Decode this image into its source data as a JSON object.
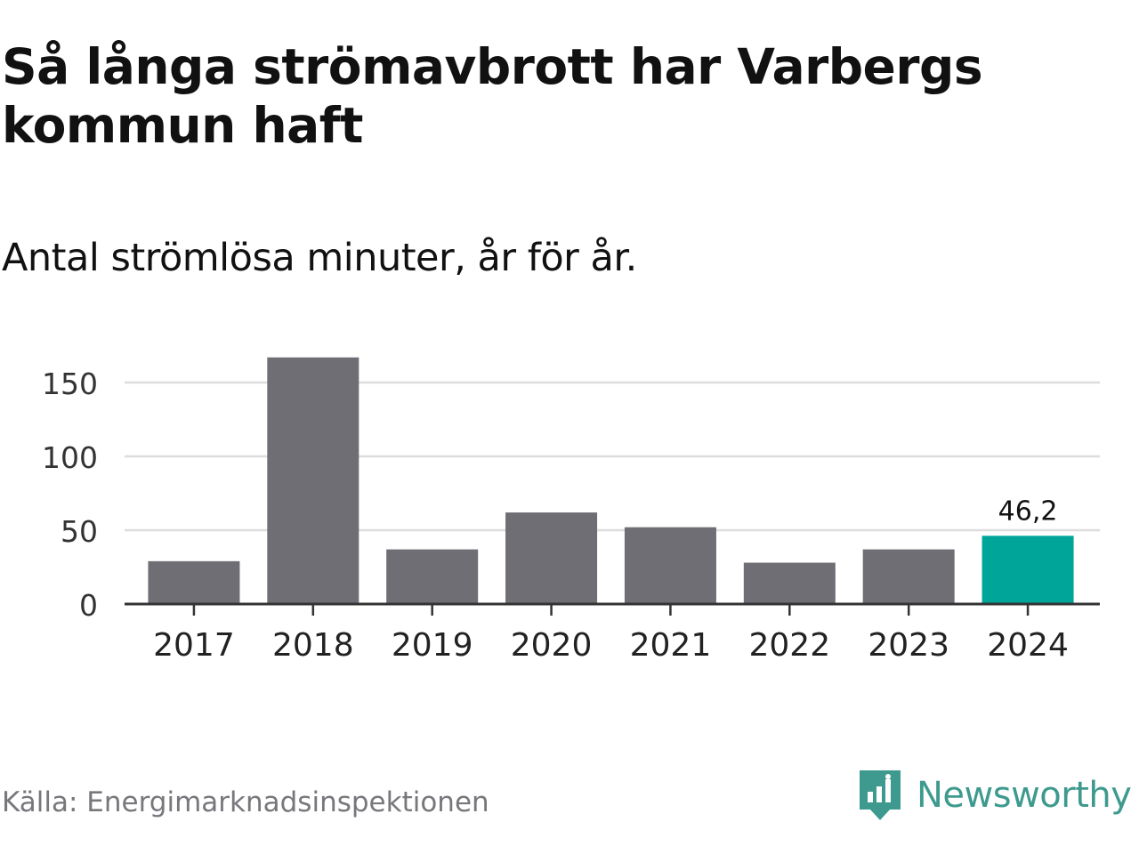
{
  "title": "Så långa strömavbrott har Varbergs kommun haft",
  "subtitle": "Antal strömlösa minuter, år för år.",
  "source": "Källa: Energimarknadsinspektionen",
  "brand": {
    "name": "Newsworthy",
    "icon": "newsworthy-logo-icon",
    "color": "#3e9a8e"
  },
  "colors": {
    "bar": "#6f6e74",
    "highlight": "#00a59a",
    "grid": "#dddddd",
    "axis": "#333333"
  },
  "chart_data": {
    "type": "bar",
    "categories": [
      "2017",
      "2018",
      "2019",
      "2020",
      "2021",
      "2022",
      "2023",
      "2024"
    ],
    "values": [
      29,
      167,
      37,
      62,
      52,
      28,
      37,
      46.2
    ],
    "highlight_index": 7,
    "data_labels": [
      null,
      null,
      null,
      null,
      null,
      null,
      null,
      "46,2"
    ],
    "yticks": [
      0,
      50,
      100,
      150
    ],
    "ylim": [
      0,
      175
    ],
    "grid": true,
    "xlabel": "",
    "ylabel": ""
  }
}
